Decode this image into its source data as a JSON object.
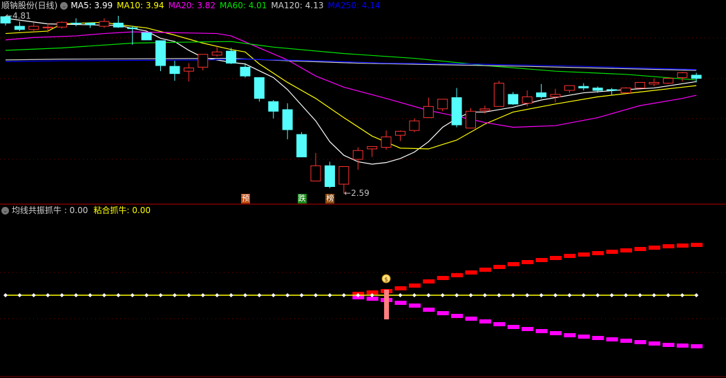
{
  "header": {
    "title": "顺钠股份(日线)",
    "ma": [
      {
        "label": "MA5: 3.99",
        "color": "#ffffff"
      },
      {
        "label": "MA10: 3.94",
        "color": "#ffff00"
      },
      {
        "label": "MA20: 3.82",
        "color": "#ff00ff"
      },
      {
        "label": "MA60: 4.01",
        "color": "#00e600"
      },
      {
        "label": "MA120: 4.13",
        "color": "#d0d0d0"
      },
      {
        "label": "MA250: 4.14",
        "color": "#0000ff"
      }
    ]
  },
  "sub_header": {
    "indicator1": "均线共振抓牛 : 0.00",
    "indicator2": "粘合抓牛: 0.00"
  },
  "annotations": {
    "high_label": "4.81",
    "low_label": "2.59",
    "markers": [
      {
        "text": "预",
        "bar": 17,
        "color": "#c04a10"
      },
      {
        "text": "跌",
        "bar": 21,
        "color": "#1a8a1a"
      },
      {
        "text": "榜",
        "bar": 23,
        "color": "#8a4a10"
      }
    ]
  },
  "chart_data": {
    "type": "candlestick",
    "price_range": [
      2.59,
      4.81
    ],
    "colors": {
      "up": "#ff3232",
      "down": "#54fcfc",
      "grid": "#800000"
    },
    "candles_ohlc": [
      [
        4.8,
        4.81,
        4.69,
        4.72
      ],
      [
        4.68,
        4.74,
        4.62,
        4.64
      ],
      [
        4.64,
        4.73,
        4.6,
        4.68
      ],
      [
        4.66,
        4.72,
        4.6,
        4.67
      ],
      [
        4.67,
        4.74,
        4.65,
        4.73
      ],
      [
        4.72,
        4.78,
        4.68,
        4.71
      ],
      [
        4.72,
        4.72,
        4.66,
        4.7
      ],
      [
        4.68,
        4.78,
        4.66,
        4.74
      ],
      [
        4.72,
        4.81,
        4.66,
        4.67
      ],
      [
        4.66,
        4.68,
        4.45,
        4.65
      ],
      [
        4.6,
        4.6,
        4.51,
        4.51
      ],
      [
        4.5,
        4.5,
        4.12,
        4.19
      ],
      [
        4.18,
        4.25,
        4.0,
        4.09
      ],
      [
        4.12,
        4.22,
        3.99,
        4.16
      ],
      [
        4.17,
        4.33,
        4.13,
        4.33
      ],
      [
        4.32,
        4.43,
        4.3,
        4.36
      ],
      [
        4.37,
        4.41,
        4.21,
        4.22
      ],
      [
        4.17,
        4.22,
        4.04,
        4.06
      ],
      [
        4.04,
        4.04,
        3.74,
        3.78
      ],
      [
        3.74,
        3.76,
        3.53,
        3.62
      ],
      [
        3.64,
        3.72,
        3.27,
        3.39
      ],
      [
        3.33,
        3.36,
        3.05,
        3.05
      ],
      [
        2.75,
        3.1,
        2.75,
        2.94
      ],
      [
        2.94,
        2.99,
        2.66,
        2.68
      ],
      [
        2.71,
        2.93,
        2.59,
        2.93
      ],
      [
        3.02,
        3.17,
        2.89,
        3.13
      ],
      [
        3.15,
        3.18,
        3.05,
        3.18
      ],
      [
        3.17,
        3.38,
        3.14,
        3.3
      ],
      [
        3.32,
        3.38,
        3.25,
        3.37
      ],
      [
        3.38,
        3.53,
        3.36,
        3.5
      ],
      [
        3.54,
        3.79,
        3.54,
        3.68
      ],
      [
        3.65,
        3.77,
        3.62,
        3.77
      ],
      [
        3.79,
        3.91,
        3.42,
        3.45
      ],
      [
        3.41,
        3.66,
        3.41,
        3.62
      ],
      [
        3.63,
        3.69,
        3.59,
        3.65
      ],
      [
        3.68,
        4.0,
        3.68,
        3.97
      ],
      [
        3.83,
        3.86,
        3.7,
        3.71
      ],
      [
        3.72,
        3.88,
        3.68,
        3.8
      ],
      [
        3.85,
        3.96,
        3.78,
        3.8
      ],
      [
        3.8,
        3.9,
        3.73,
        3.83
      ],
      [
        3.88,
        3.94,
        3.85,
        3.94
      ],
      [
        3.93,
        3.97,
        3.88,
        3.91
      ],
      [
        3.91,
        3.93,
        3.85,
        3.88
      ],
      [
        3.89,
        3.91,
        3.82,
        3.88
      ],
      [
        3.85,
        3.92,
        3.84,
        3.91
      ],
      [
        3.91,
        3.98,
        3.91,
        3.98
      ],
      [
        3.96,
        4.03,
        3.93,
        3.98
      ],
      [
        3.97,
        4.04,
        3.96,
        4.03
      ],
      [
        4.04,
        4.11,
        3.99,
        4.1
      ],
      [
        4.07,
        4.1,
        3.98,
        4.03
      ]
    ],
    "moving_averages": [
      {
        "name": "MA5",
        "color": "#ffffff",
        "points": [
          [
            0,
            4.78
          ],
          [
            3,
            4.71
          ],
          [
            8,
            4.69
          ],
          [
            10,
            4.62
          ],
          [
            11,
            4.53
          ],
          [
            12,
            4.49
          ],
          [
            13,
            4.38
          ],
          [
            14,
            4.29
          ],
          [
            16,
            4.23
          ],
          [
            17,
            4.21
          ],
          [
            19,
            4.04
          ],
          [
            20,
            3.89
          ],
          [
            22,
            3.5
          ],
          [
            23,
            3.24
          ],
          [
            24,
            3.07
          ],
          [
            25,
            2.99
          ],
          [
            26,
            2.96
          ],
          [
            27,
            2.98
          ],
          [
            28,
            3.03
          ],
          [
            29,
            3.11
          ],
          [
            30,
            3.24
          ],
          [
            31,
            3.42
          ],
          [
            32,
            3.53
          ],
          [
            33,
            3.61
          ],
          [
            34,
            3.61
          ],
          [
            36,
            3.67
          ],
          [
            38,
            3.76
          ],
          [
            41,
            3.85
          ],
          [
            44,
            3.89
          ],
          [
            46,
            3.91
          ],
          [
            49,
            3.99
          ]
        ]
      },
      {
        "name": "MA10",
        "color": "#ffff00",
        "points": [
          [
            0,
            4.59
          ],
          [
            3,
            4.62
          ],
          [
            4,
            4.71
          ],
          [
            7,
            4.73
          ],
          [
            8,
            4.7
          ],
          [
            10,
            4.66
          ],
          [
            12,
            4.57
          ],
          [
            14,
            4.47
          ],
          [
            16,
            4.39
          ],
          [
            17,
            4.36
          ],
          [
            18,
            4.21
          ],
          [
            20,
            3.98
          ],
          [
            22,
            3.78
          ],
          [
            24,
            3.54
          ],
          [
            26,
            3.31
          ],
          [
            28,
            3.16
          ],
          [
            30,
            3.15
          ],
          [
            32,
            3.26
          ],
          [
            34,
            3.46
          ],
          [
            36,
            3.61
          ],
          [
            39,
            3.71
          ],
          [
            42,
            3.8
          ],
          [
            45,
            3.86
          ],
          [
            48,
            3.92
          ],
          [
            49,
            3.94
          ]
        ]
      },
      {
        "name": "MA20",
        "color": "#ff00ff",
        "points": [
          [
            0,
            4.51
          ],
          [
            2,
            4.54
          ],
          [
            5,
            4.56
          ],
          [
            7,
            4.59
          ],
          [
            9,
            4.61
          ],
          [
            12,
            4.6
          ],
          [
            15,
            4.59
          ],
          [
            16,
            4.56
          ],
          [
            18,
            4.41
          ],
          [
            20,
            4.26
          ],
          [
            22,
            4.06
          ],
          [
            24,
            3.92
          ],
          [
            27,
            3.78
          ],
          [
            30,
            3.63
          ],
          [
            33,
            3.52
          ],
          [
            34,
            3.48
          ],
          [
            36,
            3.42
          ],
          [
            39,
            3.44
          ],
          [
            42,
            3.54
          ],
          [
            45,
            3.69
          ],
          [
            48,
            3.78
          ],
          [
            49,
            3.82
          ]
        ]
      },
      {
        "name": "MA60",
        "color": "#00e600",
        "points": [
          [
            0,
            4.38
          ],
          [
            4,
            4.41
          ],
          [
            9,
            4.47
          ],
          [
            12,
            4.48
          ],
          [
            16,
            4.49
          ],
          [
            19,
            4.42
          ],
          [
            24,
            4.34
          ],
          [
            29,
            4.28
          ],
          [
            33,
            4.21
          ],
          [
            34,
            4.19
          ],
          [
            39,
            4.12
          ],
          [
            44,
            4.08
          ],
          [
            49,
            4.01
          ]
        ]
      },
      {
        "name": "MA120",
        "color": "#d0d0d0",
        "points": [
          [
            0,
            4.26
          ],
          [
            4,
            4.27
          ],
          [
            16,
            4.28
          ],
          [
            20,
            4.25
          ],
          [
            25,
            4.22
          ],
          [
            37,
            4.18
          ],
          [
            49,
            4.13
          ]
        ]
      },
      {
        "name": "MA250",
        "color": "#0000ff",
        "points": [
          [
            0,
            4.24
          ],
          [
            4,
            4.25
          ],
          [
            14,
            4.26
          ],
          [
            17,
            4.27
          ],
          [
            22,
            4.25
          ],
          [
            27,
            4.22
          ],
          [
            33,
            4.21
          ],
          [
            41,
            4.18
          ],
          [
            49,
            4.14
          ]
        ]
      }
    ],
    "indicator": {
      "baseline_color": "#ffff00",
      "signal_bar": 27,
      "upper_color": "#ff0000",
      "lower_color": "#ff00ff",
      "signal_color": "#ff8080",
      "spread_start_bar": 25,
      "spread": [
        1,
        3,
        5,
        9,
        13,
        19,
        24,
        28,
        32,
        36,
        40,
        44,
        47,
        50,
        53,
        56,
        58,
        60,
        62,
        64,
        66,
        68,
        70,
        71,
        72
      ]
    }
  }
}
